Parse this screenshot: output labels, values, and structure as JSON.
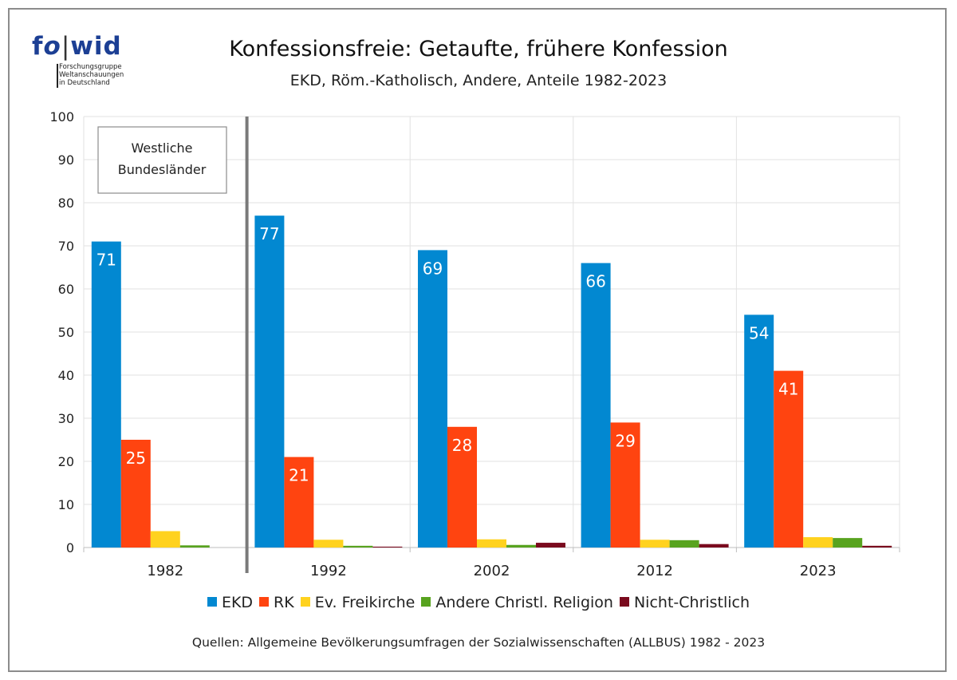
{
  "logo": {
    "text": "fowid",
    "subtitle_lines": [
      "Forschungsgruppe",
      "Weltanschauungen",
      "in Deutschland"
    ]
  },
  "colors": {
    "EKD": "#0288d1",
    "RK": "#ff4410",
    "Ev. Freikirche": "#ffd21f",
    "Andere Christl. Religion": "#58a31f",
    "Nicht-Christlich": "#7a0a1e"
  },
  "chart_data": {
    "type": "bar",
    "title": "Konfessionsfreie: Getaufte, frühere Konfession",
    "subtitle": "EKD, Röm.-Katholisch, Andere, Anteile 1982-2023",
    "categories": [
      "1982",
      "1992",
      "2002",
      "2012",
      "2023"
    ],
    "series": [
      {
        "name": "EKD",
        "values": [
          71,
          77,
          69,
          66,
          54
        ],
        "labels": [
          "71",
          "77",
          "69",
          "66",
          "54"
        ]
      },
      {
        "name": "RK",
        "values": [
          25,
          21,
          28,
          29,
          41
        ],
        "labels": [
          "25",
          "21",
          "28",
          "29",
          "41"
        ]
      },
      {
        "name": "Ev. Freikirche",
        "values": [
          3.8,
          1.8,
          1.9,
          1.8,
          2.4
        ]
      },
      {
        "name": "Andere Christl. Religion",
        "values": [
          0.5,
          0.4,
          0.6,
          1.7,
          2.2
        ]
      },
      {
        "name": "Nicht-Christlich",
        "values": [
          0,
          0.2,
          1.1,
          0.8,
          0.4
        ]
      }
    ],
    "ylim": [
      0,
      100
    ],
    "yticks": [
      "0",
      "10",
      "20",
      "30",
      "40",
      "50",
      "60",
      "70",
      "80",
      "90",
      "100"
    ],
    "grid": true,
    "legend_position": "bottom",
    "annotation": "Westliche Bundesländer",
    "annotation_lines": [
      "Westliche",
      "Bundesländer"
    ]
  },
  "source": "Quellen: Allgemeine Bevölkerungsumfragen der Sozialwissenschaften (ALLBUS) 1982 - 2023"
}
